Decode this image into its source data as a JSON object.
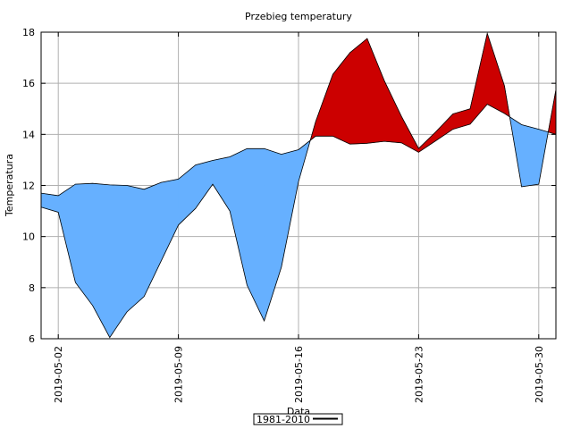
{
  "chart_data": {
    "type": "area",
    "title": "Przebieg temperatury",
    "xlabel": "Data",
    "ylabel": "Temperatura",
    "ylim": [
      6,
      18
    ],
    "yticks": [
      6,
      8,
      10,
      12,
      14,
      16,
      18
    ],
    "xlim": [
      "2019-05-01",
      "2019-05-31"
    ],
    "xticks": [
      "2019-05-02",
      "2019-05-09",
      "2019-05-16",
      "2019-05-23",
      "2019-05-30"
    ],
    "grid": true,
    "legend_position": "bottom-center",
    "colors": {
      "below_normal": "#66b0ff",
      "above_normal": "#cc0000",
      "line": "#000000"
    },
    "x": [
      "2019-05-01",
      "2019-05-02",
      "2019-05-03",
      "2019-05-04",
      "2019-05-05",
      "2019-05-06",
      "2019-05-07",
      "2019-05-08",
      "2019-05-09",
      "2019-05-10",
      "2019-05-11",
      "2019-05-12",
      "2019-05-13",
      "2019-05-14",
      "2019-05-15",
      "2019-05-16",
      "2019-05-17",
      "2019-05-18",
      "2019-05-19",
      "2019-05-20",
      "2019-05-21",
      "2019-05-22",
      "2019-05-23",
      "2019-05-24",
      "2019-05-25",
      "2019-05-26",
      "2019-05-27",
      "2019-05-28",
      "2019-05-29",
      "2019-05-30",
      "2019-05-31"
    ],
    "series": [
      {
        "name": "1981-2010",
        "values": [
          11.7,
          11.6,
          12.05,
          12.08,
          12.02,
          12.0,
          11.85,
          12.12,
          12.25,
          12.8,
          12.98,
          13.12,
          13.44,
          13.44,
          13.22,
          13.4,
          13.93,
          13.93,
          13.62,
          13.65,
          13.73,
          13.67,
          13.3,
          13.75,
          14.2,
          14.4,
          15.18,
          14.82,
          14.38,
          14.2,
          14.0
        ]
      },
      {
        "values": [
          11.15,
          10.95,
          8.2,
          7.3,
          6.05,
          7.05,
          7.65,
          9.05,
          10.45,
          11.1,
          12.05,
          11.0,
          8.1,
          6.7,
          8.8,
          12.15,
          14.5,
          16.35,
          17.2,
          17.75,
          16.1,
          14.7,
          13.45,
          14.1,
          14.8,
          15.0,
          17.95,
          15.9,
          11.95,
          12.05,
          15.75
        ]
      }
    ],
    "legend": [
      "1981-2010"
    ]
  }
}
